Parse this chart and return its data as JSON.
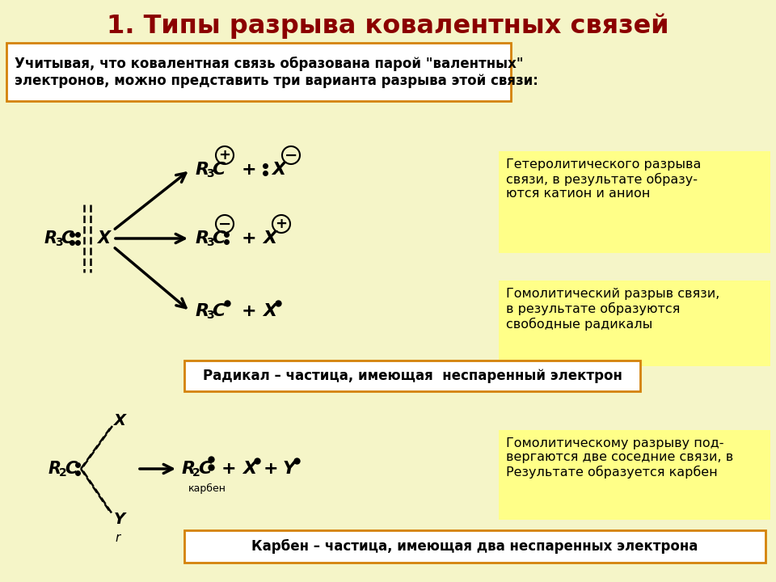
{
  "title": "1. Типы разрыва ковалентных связей",
  "title_color": "#8B0000",
  "bg_color": "#F5F5C8",
  "intro_text": "Учитывая, что ковалентная связь образована парой \"валентных\"\nэлектронов, можно представить три варианта разрыва этой связи:",
  "box1_text": "Гетеролитического разрыва\nсвязи, в результате образу-\nются катион и анион",
  "box2_text": "Гомолитический разрыв связи,\nв результате образуются\nсвободные радикалы",
  "box3_text": "Радикал – частица, имеющая  неспаренный электрон",
  "box4_text": "Гомолитическому разрыву под-\nвергаются две соседние связи, в\nРезультате образуется карбен",
  "box5_text": "Карбен – частица, имеющая два неспаренных электрона",
  "yellow_box_color": "#FFFF88",
  "orange_border_color": "#D4820A",
  "text_color": "#000000",
  "arrow_color": "#000000"
}
